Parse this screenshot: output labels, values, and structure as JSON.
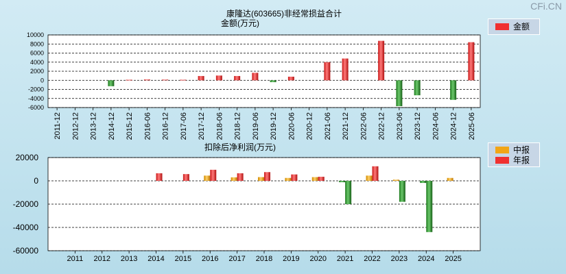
{
  "watermark": "CFi.CN",
  "colors": {
    "red": "#f03030",
    "green": "#2f9a2f",
    "orange": "#f2a516"
  },
  "chart_data": [
    {
      "type": "bar",
      "title": "康隆达(603665)非经常损益合计",
      "subtitle": "金额(万元)",
      "categories": [
        "2011-12",
        "2012-12",
        "2013-12",
        "2014-12",
        "2015-12",
        "2016-06",
        "2016-12",
        "2017-06",
        "2017-12",
        "2018-06",
        "2018-12",
        "2019-06",
        "2019-12",
        "2020-06",
        "2020-12",
        "2021-06",
        "2021-12",
        "2022-06",
        "2022-12",
        "2023-06",
        "2023-12",
        "2024-06",
        "2024-12",
        "2025-06"
      ],
      "series": [
        {
          "name": "金额",
          "values": [
            null,
            null,
            null,
            -1300,
            120,
            180,
            150,
            120,
            950,
            1050,
            950,
            1650,
            -400,
            800,
            null,
            4000,
            4800,
            null,
            8700,
            -5700,
            -3300,
            null,
            -4300,
            8400
          ]
        }
      ],
      "y_ticks": [
        10000,
        8000,
        6000,
        4000,
        2000,
        0,
        -2000,
        -4000,
        -6000
      ],
      "ylim": [
        -6000,
        10000
      ],
      "grid": true,
      "legend_position": "top-right"
    },
    {
      "type": "bar",
      "title": "扣除后净利润(万元)",
      "categories": [
        "2011",
        "2012",
        "2013",
        "2014",
        "2015",
        "2016",
        "2017",
        "2018",
        "2019",
        "2020",
        "2021",
        "2022",
        "2023",
        "2024",
        "2025"
      ],
      "series": [
        {
          "name": "中报",
          "values": [
            null,
            null,
            null,
            null,
            null,
            4500,
            3000,
            3200,
            2500,
            3200,
            -1200,
            4500,
            1000,
            -1800,
            2500
          ]
        },
        {
          "name": "年报",
          "values": [
            null,
            null,
            null,
            6500,
            5800,
            9500,
            6500,
            7500,
            5500,
            3500,
            -20000,
            12500,
            -18000,
            -44000,
            null
          ]
        }
      ],
      "y_ticks": [
        20000,
        0,
        -20000,
        -40000,
        -60000
      ],
      "ylim": [
        -60000,
        20000
      ],
      "grid": true,
      "legend_position": "top-right"
    }
  ]
}
